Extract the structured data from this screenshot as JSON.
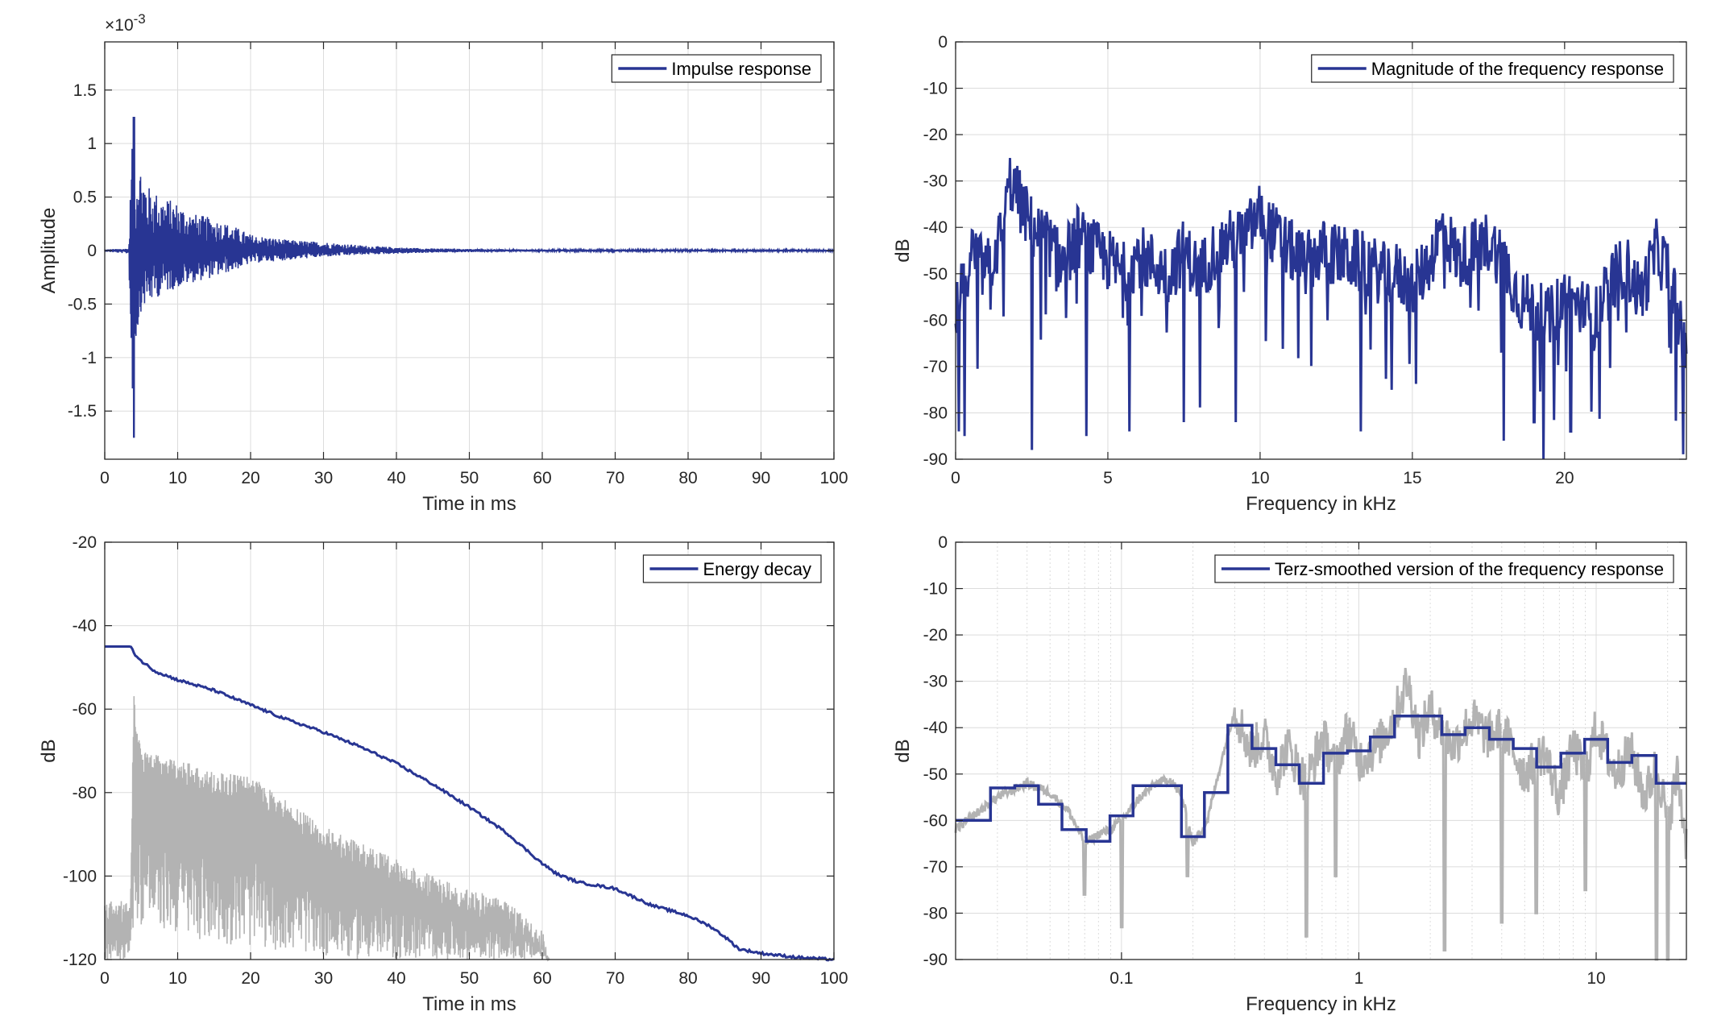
{
  "colors": {
    "series": "#283593",
    "smooth_background": "#b3b3b3",
    "grid": "#dcdcdc",
    "axes": "#262626"
  },
  "chart_data": [
    {
      "type": "line",
      "legend": [
        "Impulse response"
      ],
      "legend_location": "top-right",
      "xlabel": "Time in ms",
      "ylabel": "Amplitude",
      "y_exponent": "×10",
      "y_exponent_power": "-3",
      "xlim": [
        0,
        100
      ],
      "ylim": [
        -1.95,
        1.95
      ],
      "grid": true,
      "xticks": [
        0,
        10,
        20,
        30,
        40,
        50,
        60,
        70,
        80,
        90,
        100
      ],
      "xtick_labels": [
        "0",
        "10",
        "20",
        "30",
        "40",
        "50",
        "60",
        "70",
        "80",
        "90",
        "100"
      ],
      "yticks": [
        -1.5,
        -1,
        -0.5,
        0,
        0.5,
        1,
        1.5
      ],
      "ytick_labels": [
        "-1.5",
        "-1",
        "-0.5",
        "0",
        "0.5",
        "1",
        "1.5"
      ],
      "envelope": {
        "t": [
          0,
          3.3,
          3.8,
          4.0,
          4.5,
          5,
          6,
          8,
          10,
          12,
          15,
          18,
          20,
          25,
          30,
          35,
          40,
          45,
          50,
          60,
          70,
          80,
          90,
          100
        ],
        "pos": [
          0.01,
          0.02,
          1.25,
          0.4,
          0.95,
          0.8,
          0.6,
          0.5,
          0.45,
          0.35,
          0.3,
          0.22,
          0.15,
          0.1,
          0.08,
          0.05,
          0.03,
          0.02,
          0.015,
          0.01,
          0.01,
          0.01,
          0.01,
          0.01
        ],
        "neg": [
          -0.01,
          -0.03,
          -1.75,
          -0.9,
          -0.8,
          -0.55,
          -0.5,
          -0.4,
          -0.35,
          -0.3,
          -0.25,
          -0.18,
          -0.12,
          -0.09,
          -0.06,
          -0.04,
          -0.03,
          -0.02,
          -0.015,
          -0.01,
          -0.01,
          -0.01,
          -0.01,
          -0.01
        ]
      }
    },
    {
      "type": "line",
      "legend": [
        "Magnitude of the frequency response"
      ],
      "legend_location": "top-right",
      "xlabel": "Frequency in kHz",
      "ylabel": "dB",
      "xlim": [
        0,
        24
      ],
      "ylim": [
        -90,
        0
      ],
      "grid": true,
      "xticks": [
        0,
        5,
        10,
        15,
        20
      ],
      "xtick_labels": [
        "0",
        "5",
        "10",
        "15",
        "20"
      ],
      "yticks": [
        0,
        -10,
        -20,
        -30,
        -40,
        -50,
        -60,
        -70,
        -80,
        -90
      ],
      "ytick_labels": [
        "0",
        "-10",
        "-20",
        "-30",
        "-40",
        "-50",
        "-60",
        "-70",
        "-80",
        "-90"
      ],
      "x": [
        0,
        0.5,
        1,
        1.5,
        1.8,
        2.5,
        3,
        3.5,
        4,
        4.5,
        5,
        5.5,
        6,
        6.5,
        7,
        7.5,
        8,
        8.5,
        9,
        9.5,
        10,
        10.5,
        11,
        11.5,
        12,
        12.5,
        13,
        13.5,
        14,
        14.5,
        15,
        15.5,
        16,
        16.5,
        17,
        17.5,
        18,
        18.5,
        19,
        19.5,
        20,
        20.5,
        21,
        21.5,
        22,
        22.5,
        23,
        23.5,
        24
      ],
      "y": [
        -60,
        -45,
        -50,
        -42,
        -30,
        -40,
        -43,
        -48,
        -42,
        -45,
        -47,
        -50,
        -46,
        -48,
        -50,
        -45,
        -50,
        -45,
        -43,
        -42,
        -37,
        -42,
        -45,
        -48,
        -45,
        -46,
        -47,
        -48,
        -50,
        -50,
        -53,
        -48,
        -40,
        -47,
        -45,
        -43,
        -47,
        -55,
        -58,
        -60,
        -55,
        -57,
        -60,
        -52,
        -48,
        -55,
        -45,
        -50,
        -70
      ],
      "deep_dips": [
        [
          0.1,
          -84
        ],
        [
          0.3,
          -85
        ],
        [
          2.5,
          -88
        ],
        [
          4.3,
          -85
        ],
        [
          5.7,
          -84
        ],
        [
          7.5,
          -82
        ],
        [
          9.2,
          -82
        ],
        [
          13.3,
          -84
        ],
        [
          18,
          -86
        ],
        [
          19,
          -82
        ],
        [
          19.3,
          -90
        ],
        [
          20.2,
          -84
        ]
      ]
    },
    {
      "type": "line",
      "legend": [
        "Energy decay"
      ],
      "legend_location": "top-right",
      "xlabel": "Time in ms",
      "ylabel": "dB",
      "xlim": [
        0,
        100
      ],
      "ylim": [
        -120,
        -20
      ],
      "grid": true,
      "xticks": [
        0,
        10,
        20,
        30,
        40,
        50,
        60,
        70,
        80,
        90,
        100
      ],
      "xtick_labels": [
        "0",
        "10",
        "20",
        "30",
        "40",
        "50",
        "60",
        "70",
        "80",
        "90",
        "100"
      ],
      "yticks": [
        -20,
        -40,
        -60,
        -80,
        -100,
        -120
      ],
      "ytick_labels": [
        "-20",
        "-40",
        "-60",
        "-80",
        "-100",
        "-120"
      ],
      "series": [
        {
          "name": "Energy decay",
          "x": [
            0,
            3.5,
            4,
            5,
            7,
            10,
            15,
            20,
            25,
            30,
            35,
            40,
            45,
            50,
            55,
            60,
            62,
            65,
            70,
            75,
            80,
            83,
            85,
            87,
            90,
            95,
            100
          ],
          "y": [
            -45,
            -45,
            -46.5,
            -48.5,
            -51,
            -53,
            -55.5,
            -59,
            -62.5,
            -65.5,
            -69,
            -73,
            -78,
            -83.5,
            -89.5,
            -97,
            -99.5,
            -101.5,
            -103,
            -107,
            -109.5,
            -112,
            -114.5,
            -117.5,
            -118.5,
            -119.5,
            -120
          ]
        }
      ],
      "background_envelope": {
        "t": [
          0,
          3.5,
          4,
          5,
          10,
          15,
          20,
          25,
          30,
          35,
          40,
          45,
          50,
          55,
          60,
          61
        ],
        "top": [
          -106,
          -106,
          -56,
          -70,
          -72,
          -75,
          -76,
          -82,
          -88,
          -92,
          -96,
          -100,
          -103,
          -106,
          -113,
          -120
        ],
        "bottom": [
          -120,
          -120,
          -110,
          -112,
          -114,
          -116,
          -117,
          -118,
          -119,
          -120,
          -120,
          -120,
          -120,
          -120,
          -120,
          -120
        ]
      }
    },
    {
      "type": "line",
      "legend": [
        "Terz-smoothed version of the frequency response"
      ],
      "legend_location": "top-right",
      "xlabel": "Frequency in kHz",
      "ylabel": "dB",
      "xscale": "log",
      "xlim": [
        0.02,
        24
      ],
      "ylim": [
        -90,
        0
      ],
      "grid": true,
      "xticks": [
        0.1,
        1,
        10
      ],
      "xtick_labels": [
        "0.1",
        "1",
        "10"
      ],
      "yticks": [
        0,
        -10,
        -20,
        -30,
        -40,
        -50,
        -60,
        -70,
        -80,
        -90
      ],
      "ytick_labels": [
        "0",
        "-10",
        "-20",
        "-30",
        "-40",
        "-50",
        "-60",
        "-70",
        "-80",
        "-90"
      ],
      "bands": {
        "centers": [
          0.025,
          0.0315,
          0.04,
          0.05,
          0.063,
          0.08,
          0.1,
          0.125,
          0.16,
          0.2,
          0.25,
          0.315,
          0.4,
          0.5,
          0.63,
          0.8,
          1,
          1.25,
          1.6,
          2,
          2.5,
          3.15,
          4,
          5,
          6.3,
          8,
          10,
          12.5,
          16,
          20
        ],
        "levels": [
          -60,
          -53,
          -52.5,
          -56.5,
          -62,
          -64.5,
          -59,
          -52.5,
          -52.5,
          -63.5,
          -54,
          -39.5,
          -44.5,
          -48,
          -52,
          -45.5,
          -45,
          -42,
          -37.5,
          -37.5,
          -41.5,
          -40,
          -42.5,
          -44.5,
          -48.5,
          -45.5,
          -42.5,
          -47.5,
          -46,
          -52
        ]
      },
      "unsmoothed": {
        "x": [
          0.02,
          0.03,
          0.04,
          0.05,
          0.06,
          0.07,
          0.08,
          0.09,
          0.1,
          0.12,
          0.14,
          0.16,
          0.18,
          0.2,
          0.23,
          0.27,
          0.3,
          0.35,
          0.4,
          0.45,
          0.5,
          0.6,
          0.7,
          0.8,
          0.9,
          1,
          1.2,
          1.4,
          1.6,
          1.8,
          2,
          2.5,
          3,
          3.5,
          4,
          5,
          6,
          7,
          8,
          9,
          10,
          12,
          14,
          16,
          18,
          20,
          22,
          24
        ],
        "y": [
          -62,
          -55,
          -52,
          -54,
          -58,
          -65,
          -63,
          -62,
          -60,
          -55,
          -52,
          -51,
          -55,
          -65,
          -60,
          -45,
          -36,
          -45,
          -42,
          -50,
          -44,
          -52,
          -42,
          -48,
          -40,
          -47,
          -44,
          -38,
          -30,
          -42,
          -36,
          -44,
          -38,
          -42,
          -40,
          -50,
          -45,
          -55,
          -44,
          -50,
          -40,
          -50,
          -45,
          -55,
          -48,
          -60,
          -50,
          -65
        ]
      },
      "deep_dips": [
        [
          0.07,
          -76
        ],
        [
          0.1,
          -83
        ],
        [
          0.19,
          -72
        ],
        [
          0.6,
          -85
        ],
        [
          0.8,
          -72
        ],
        [
          2.3,
          -88
        ],
        [
          4,
          -82
        ],
        [
          5.6,
          -80
        ],
        [
          9,
          -75
        ],
        [
          18,
          -90
        ],
        [
          20,
          -90
        ]
      ]
    }
  ]
}
